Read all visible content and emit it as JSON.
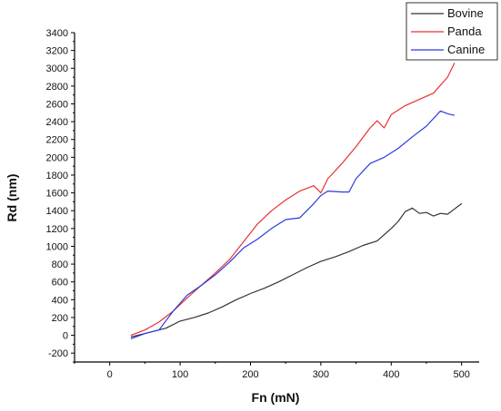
{
  "chart_data": {
    "type": "line",
    "xlabel": "Fn (mN)",
    "ylabel": "Rd (nm)",
    "xlim": [
      -50,
      525
    ],
    "ylim": [
      -300,
      3400
    ],
    "x_ticks": [
      0,
      100,
      200,
      300,
      400,
      500
    ],
    "y_ticks": [
      -200,
      0,
      200,
      400,
      600,
      800,
      1000,
      1200,
      1400,
      1600,
      1800,
      2000,
      2200,
      2400,
      2600,
      2800,
      3000,
      3200,
      3400
    ],
    "grid": false,
    "legend_position": "top-right",
    "series": [
      {
        "name": "Bovine",
        "color": "#333333",
        "x": [
          30,
          50,
          80,
          100,
          120,
          140,
          160,
          180,
          200,
          220,
          240,
          260,
          280,
          300,
          320,
          340,
          360,
          380,
          400,
          410,
          420,
          430,
          440,
          450,
          460,
          470,
          480,
          490,
          500
        ],
        "y": [
          -20,
          20,
          80,
          160,
          200,
          250,
          320,
          400,
          470,
          530,
          600,
          680,
          760,
          830,
          880,
          940,
          1010,
          1060,
          1200,
          1280,
          1390,
          1430,
          1370,
          1380,
          1340,
          1370,
          1360,
          1420,
          1480
        ]
      },
      {
        "name": "Panda",
        "color": "#e8312f",
        "x": [
          30,
          50,
          70,
          90,
          110,
          130,
          150,
          170,
          190,
          210,
          230,
          250,
          270,
          290,
          300,
          310,
          330,
          350,
          370,
          380,
          390,
          400,
          420,
          440,
          460,
          480,
          490
        ],
        "y": [
          0,
          60,
          150,
          270,
          420,
          560,
          700,
          850,
          1050,
          1250,
          1400,
          1520,
          1620,
          1680,
          1600,
          1760,
          1930,
          2120,
          2330,
          2410,
          2330,
          2480,
          2580,
          2650,
          2720,
          2900,
          3060
        ]
      },
      {
        "name": "Canine",
        "color": "#2a3ae0",
        "x": [
          30,
          50,
          70,
          90,
          110,
          130,
          150,
          170,
          190,
          210,
          230,
          250,
          270,
          290,
          300,
          310,
          330,
          340,
          350,
          370,
          390,
          410,
          430,
          450,
          470,
          480,
          490
        ],
        "y": [
          -40,
          20,
          60,
          270,
          450,
          560,
          680,
          820,
          980,
          1080,
          1200,
          1300,
          1320,
          1480,
          1570,
          1620,
          1610,
          1610,
          1760,
          1930,
          2000,
          2100,
          2230,
          2350,
          2520,
          2490,
          2470
        ]
      }
    ]
  }
}
